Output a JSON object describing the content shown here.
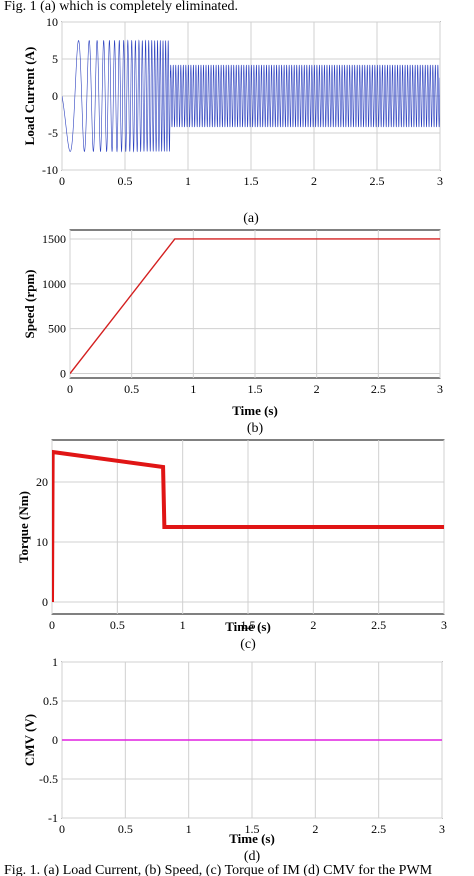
{
  "figure": {
    "header_text": "Fig. 1 (a) which is completely eliminated.",
    "footer_text": "Fig. 1. (a) Load Current, (b) Speed, (c) Torque of IM (d) CMV for the PWM"
  },
  "chart_data": [
    {
      "type": "line",
      "panel_label": "(a)",
      "xlabel": "",
      "ylabel": "Load Current (A)",
      "xlim": [
        0,
        3
      ],
      "ylim": [
        -10,
        10
      ],
      "xticks": [
        "0",
        "0.5",
        "1",
        "1.5",
        "2",
        "2.5",
        "3"
      ],
      "yticks": [
        "-10",
        "-5",
        "0",
        "5",
        "10"
      ],
      "grid": true,
      "series": [
        {
          "color": "#2a3fbf",
          "description_points": {
            "x": [
              0,
              0.85,
              0.86,
              3.0
            ],
            "amplitude": [
              7.5,
              7.5,
              4.2,
              4.2
            ],
            "frequency_hz": [
              2,
              50,
              50,
              50
            ]
          }
        }
      ]
    },
    {
      "type": "line",
      "panel_label": "(b)",
      "xlabel": "Time (s)",
      "ylabel": "Speed (rpm)",
      "xlim": [
        0,
        3
      ],
      "ylim": [
        -50,
        1600
      ],
      "xticks": [
        "0",
        "0.5",
        "1",
        "1.5",
        "2",
        "2.5",
        "3"
      ],
      "yticks": [
        "0",
        "500",
        "1000",
        "1500"
      ],
      "grid": true,
      "series": [
        {
          "color": "#d42020",
          "x": [
            0,
            0.85,
            3.0
          ],
          "y": [
            0,
            1500,
            1500
          ]
        }
      ]
    },
    {
      "type": "line",
      "panel_label": "(c)",
      "xlabel": "Time (s)",
      "ylabel": "Torque (Nm)",
      "xlim": [
        0,
        3
      ],
      "ylim": [
        -2,
        27
      ],
      "xticks": [
        "0",
        "0.5",
        "1",
        "1.5",
        "2",
        "2.5",
        "3"
      ],
      "yticks": [
        "0",
        "10",
        "20"
      ],
      "grid": true,
      "series": [
        {
          "color": "#e01515",
          "x": [
            0,
            0.005,
            0.85,
            0.86,
            3.0
          ],
          "y": [
            0,
            25,
            22.5,
            12.5,
            12.5
          ]
        }
      ]
    },
    {
      "type": "line",
      "panel_label": "(d)",
      "xlabel": "Time (s)",
      "ylabel": "CMV (V)",
      "xlim": [
        0,
        3
      ],
      "ylim": [
        -1,
        1
      ],
      "xticks": [
        "0",
        "0.5",
        "1",
        "1.5",
        "2",
        "2.5",
        "3"
      ],
      "yticks": [
        "-1",
        "-0.5",
        "0",
        "0.5",
        "1"
      ],
      "grid": true,
      "series": [
        {
          "color": "#e020e0",
          "x": [
            0,
            3.0
          ],
          "y": [
            0,
            0
          ]
        }
      ]
    }
  ]
}
